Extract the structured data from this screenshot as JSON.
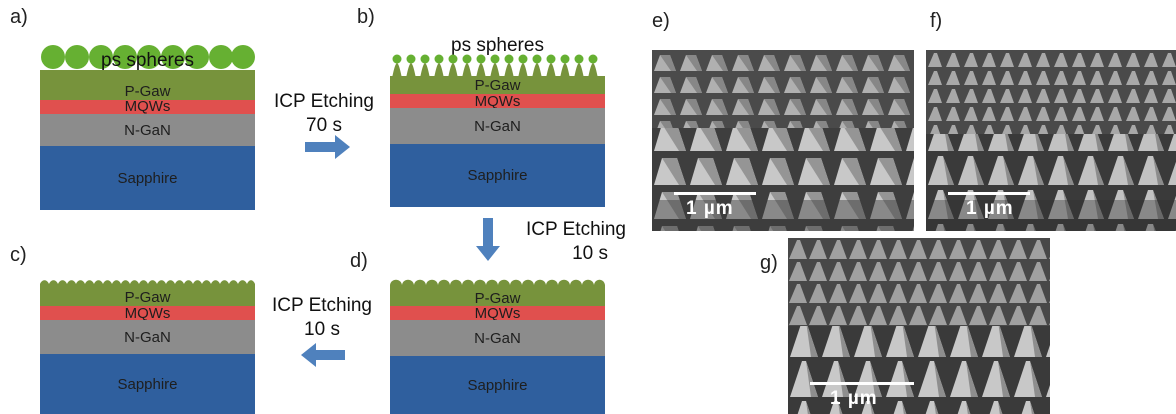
{
  "panels": {
    "a": {
      "letter": "a)",
      "sphere_label": "ps spheres",
      "layers": {
        "p": "P-Gaw",
        "mqw": "MQWs",
        "n": "N-GaN",
        "substrate": "Sapphire"
      }
    },
    "b": {
      "letter": "b)",
      "sphere_label": "ps spheres",
      "layers": {
        "p": "P-Gaw",
        "mqw": "MQWs",
        "n": "N-GaN",
        "substrate": "Sapphire"
      }
    },
    "c": {
      "letter": "c)",
      "layers": {
        "p": "P-Gaw",
        "mqw": "MQWs",
        "n": "N-GaN",
        "substrate": "Sapphire"
      }
    },
    "d": {
      "letter": "d)",
      "layers": {
        "p": "P-Gaw",
        "mqw": "MQWs",
        "n": "N-GaN",
        "substrate": "Sapphire"
      }
    },
    "e": {
      "letter": "e)",
      "scale_label": "1 µm"
    },
    "f": {
      "letter": "f)",
      "scale_label": "1 µm"
    },
    "g": {
      "letter": "g)",
      "scale_label": "1 µm"
    }
  },
  "steps": {
    "a_to_b": {
      "line1": "ICP Etching",
      "line2": "70 s"
    },
    "b_to_d": {
      "line1": "ICP Etching",
      "line2": "10 s"
    },
    "d_to_c": {
      "line1": "ICP Etching",
      "line2": "10 s"
    }
  },
  "colors": {
    "sphere": "#66b032",
    "p_gan": "#77933c",
    "mqw": "#e0504e",
    "n_gan": "#8c8c8c",
    "sapphire": "#2f5f9e",
    "arrow": "#4f81bd"
  }
}
